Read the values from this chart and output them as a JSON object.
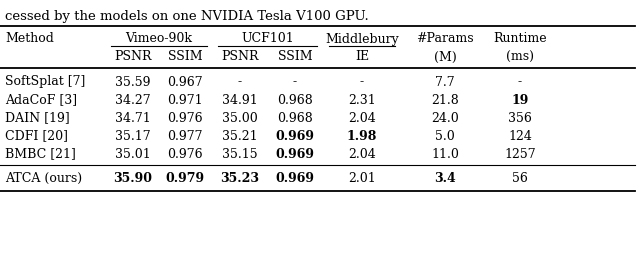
{
  "title_text": "cessed by the models on one NVIDIA Tesla V100 GPU.",
  "rows": [
    {
      "method": "SoftSplat [7]",
      "values": [
        "35.59",
        "0.967",
        "-",
        "-",
        "-",
        "7.7",
        "-"
      ],
      "bold": [
        false,
        false,
        false,
        false,
        false,
        false,
        false
      ]
    },
    {
      "method": "AdaCoF [3]",
      "values": [
        "34.27",
        "0.971",
        "34.91",
        "0.968",
        "2.31",
        "21.8",
        "19"
      ],
      "bold": [
        false,
        false,
        false,
        false,
        false,
        false,
        true
      ]
    },
    {
      "method": "DAIN [19]",
      "values": [
        "34.71",
        "0.976",
        "35.00",
        "0.968",
        "2.04",
        "24.0",
        "356"
      ],
      "bold": [
        false,
        false,
        false,
        false,
        false,
        false,
        false
      ]
    },
    {
      "method": "CDFI [20]",
      "values": [
        "35.17",
        "0.977",
        "35.21",
        "0.969",
        "1.98",
        "5.0",
        "124"
      ],
      "bold": [
        false,
        false,
        false,
        true,
        true,
        false,
        false
      ]
    },
    {
      "method": "BMBC [21]",
      "values": [
        "35.01",
        "0.976",
        "35.15",
        "0.969",
        "2.04",
        "11.0",
        "1257"
      ],
      "bold": [
        false,
        false,
        false,
        true,
        false,
        false,
        false
      ]
    }
  ],
  "ours_row": {
    "method": "ATCA (ours)",
    "values": [
      "35.90",
      "0.979",
      "35.23",
      "0.969",
      "2.01",
      "3.4",
      "56"
    ],
    "bold": [
      true,
      true,
      true,
      true,
      false,
      true,
      false
    ]
  },
  "background_color": "#ffffff",
  "font_size": 9.0,
  "font_family": "DejaVu Serif"
}
